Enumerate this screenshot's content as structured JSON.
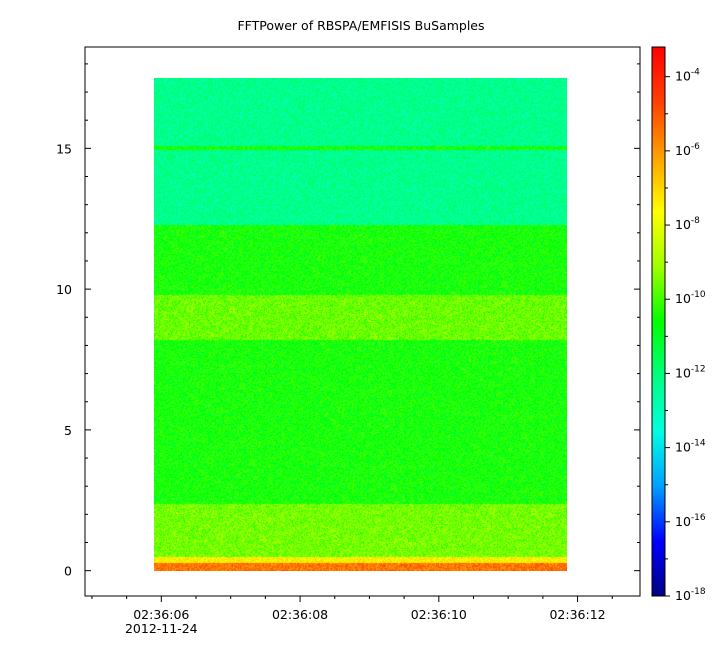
{
  "chart_data": {
    "type": "heatmap",
    "title": "FFTPower of RBSPA/EMFISIS  BuSamples",
    "xlabel": "",
    "ylabel": "",
    "x_ticks": [
      {
        "label": "02:36:06",
        "sub": "2012-11-24",
        "t": 6
      },
      {
        "label": "02:36:08",
        "sub": "",
        "t": 8
      },
      {
        "label": "02:36:10",
        "sub": "",
        "t": 10
      },
      {
        "label": "02:36:12",
        "sub": "",
        "t": 12
      }
    ],
    "x_range_seconds": [
      4.9,
      12.9
    ],
    "x_minor_step": 0.5,
    "data_extent_seconds": [
      5.9,
      11.85
    ],
    "y_ticks": [
      0,
      5,
      10,
      15
    ],
    "ylim": [
      -0.9,
      18.6
    ],
    "y_minor_step": 1,
    "data_extent_y": [
      0,
      17.5
    ],
    "colorbar": {
      "scale": "log",
      "range": [
        -18,
        -3.2
      ],
      "tick_exponents": [
        -4,
        -6,
        -8,
        -10,
        -12,
        -14,
        -16,
        -18
      ],
      "tick_base": "10",
      "colormap": [
        "#000080",
        "#0000ff",
        "#00a0ff",
        "#00ffe0",
        "#00ff80",
        "#00ff00",
        "#a0ff00",
        "#ffff00",
        "#ffa000",
        "#ff4000",
        "#ff0000"
      ]
    },
    "bands": [
      {
        "y_from": 12.3,
        "y_to": 17.5,
        "log_power": -12.3
      },
      {
        "y_from": 14.95,
        "y_to": 15.1,
        "log_power": -10.6
      },
      {
        "y_from": 0.5,
        "y_to": 12.3,
        "log_power": -10.5
      },
      {
        "y_from": 8.2,
        "y_to": 9.8,
        "log_power": -9.6
      },
      {
        "y_from": 0.5,
        "y_to": 2.4,
        "log_power": -9.5
      },
      {
        "y_from": 0.3,
        "y_to": 0.5,
        "log_power": -7.5
      },
      {
        "y_from": 0.0,
        "y_to": 0.3,
        "log_power": -5.5
      }
    ]
  }
}
